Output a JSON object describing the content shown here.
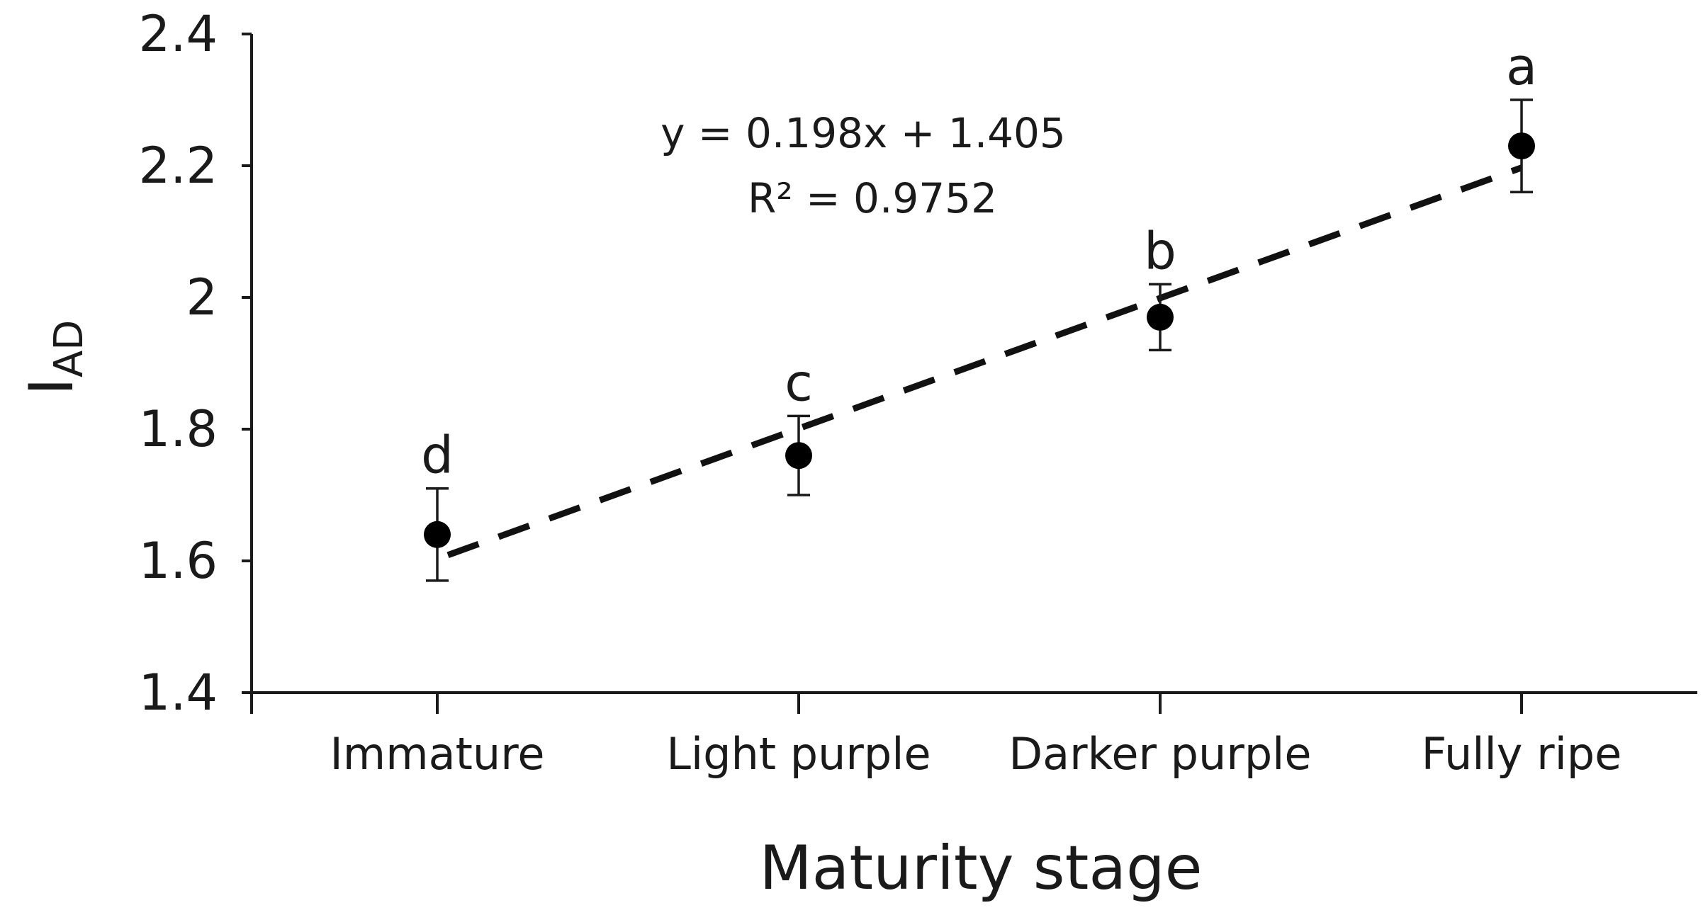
{
  "chart_data": {
    "type": "scatter",
    "xlabel": "Maturity stage",
    "ylabel": {
      "main": "I",
      "sub": "AD"
    },
    "ylim": [
      1.4,
      2.4
    ],
    "yticks": [
      "1.4",
      "1.6",
      "1.8",
      "2",
      "2.2",
      "2.4"
    ],
    "categories": [
      "Immature",
      "Light purple",
      "Darker purple",
      "Fully ripe"
    ],
    "values": [
      1.64,
      1.76,
      1.97,
      2.23
    ],
    "errors": [
      0.07,
      0.06,
      0.05,
      0.07
    ],
    "significance": [
      "d",
      "c",
      "b",
      "a"
    ],
    "trendline": {
      "slope": 0.198,
      "intercept": 1.405,
      "equation": "y = 0.198x + 1.405",
      "r2": "R² = 0.9752"
    },
    "grid": false,
    "legend": "none",
    "colors": {
      "marker": "#000000",
      "line": "#111111"
    }
  }
}
